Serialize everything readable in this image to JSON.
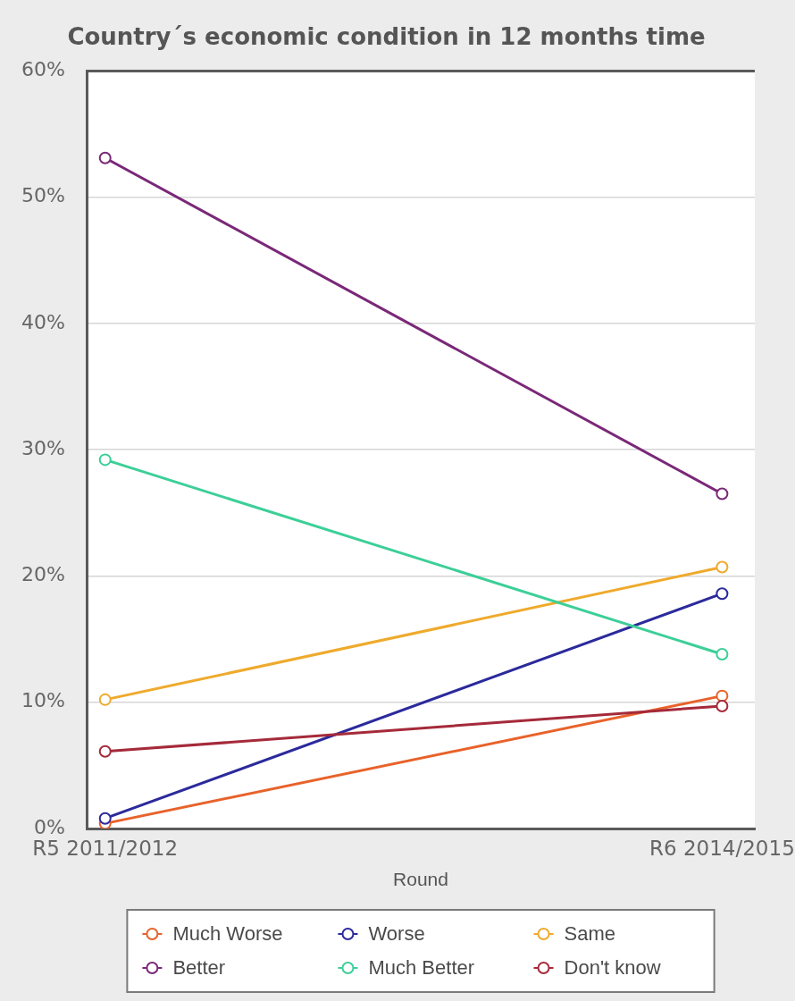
{
  "chart_data": {
    "type": "line",
    "title": "Country´s economic condition in 12 months time",
    "xlabel": "Round",
    "categories": [
      "R5 2011/2012",
      "R6 2014/2015"
    ],
    "series": [
      {
        "name": "Much Worse",
        "color": "#e8622a",
        "values": [
          0.4,
          10.5
        ]
      },
      {
        "name": "Worse",
        "color": "#2b2a9c",
        "values": [
          0.8,
          18.6
        ]
      },
      {
        "name": "Same",
        "color": "#efaa2c",
        "values": [
          10.2,
          20.7
        ]
      },
      {
        "name": "Better",
        "color": "#7a2878",
        "values": [
          53.1,
          26.5
        ]
      },
      {
        "name": "Much Better",
        "color": "#3ccf98",
        "values": [
          29.2,
          13.8
        ]
      },
      {
        "name": "Don't know",
        "color": "#a52a3a",
        "values": [
          6.1,
          9.7
        ]
      }
    ],
    "ylim": [
      0,
      60
    ],
    "yticks": [
      {
        "value": 0,
        "label": "0%"
      },
      {
        "value": 10,
        "label": "10%"
      },
      {
        "value": 20,
        "label": "20%"
      },
      {
        "value": 30,
        "label": "30%"
      },
      {
        "value": 40,
        "label": "40%"
      },
      {
        "value": 50,
        "label": "50%"
      },
      {
        "value": 60,
        "label": "60%"
      }
    ],
    "grid": "y",
    "legend": "bottom",
    "marker": "circle"
  }
}
